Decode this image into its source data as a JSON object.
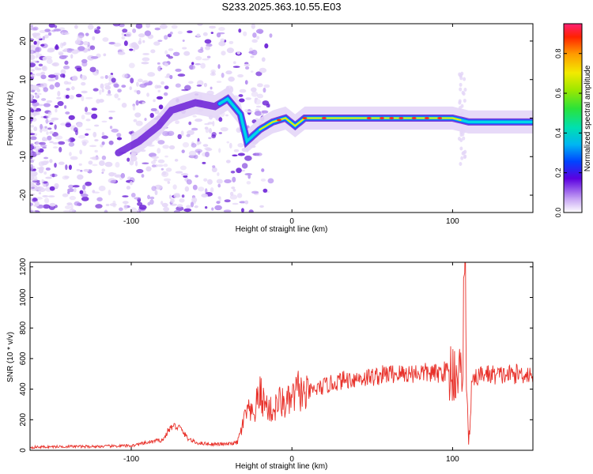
{
  "title": "S233.2025.363.10.55.E03",
  "colors": {
    "line": "#e8312a",
    "spectrogram_faint": "#e4d6f7",
    "spectrogram_mid": "#b58ef0",
    "spectrogram_strong": "#6a1fd6",
    "ridge": "#00d8e6",
    "ridge_core": "#ff2a1a"
  },
  "chart_data": [
    {
      "id": "spectrogram",
      "type": "heatmap",
      "xlabel": "Height of straight line (km)",
      "ylabel": "Frequency (Hz)",
      "xlim": [
        -163,
        150
      ],
      "ylim": [
        -24.5,
        24.5
      ],
      "xticks": [
        -100,
        0,
        100
      ],
      "xtick_labels": [
        "-100",
        "0",
        "100"
      ],
      "yticks": [
        20,
        10,
        0,
        -10,
        -20
      ],
      "ytick_labels": [
        "20",
        "10",
        "0",
        "-10",
        "-20"
      ],
      "grid": false,
      "description_ridge": [
        {
          "x": -108,
          "y": -9
        },
        {
          "x": -95,
          "y": -6
        },
        {
          "x": -83,
          "y": -2
        },
        {
          "x": -75,
          "y": 2
        },
        {
          "x": -60,
          "y": 4
        },
        {
          "x": -48,
          "y": 3
        },
        {
          "x": -40,
          "y": 5
        },
        {
          "x": -32,
          "y": 1
        },
        {
          "x": -28,
          "y": -6
        },
        {
          "x": -20,
          "y": -3
        },
        {
          "x": -12,
          "y": -1
        },
        {
          "x": -4,
          "y": 0
        },
        {
          "x": 2,
          "y": -2
        },
        {
          "x": 8,
          "y": 0
        },
        {
          "x": 40,
          "y": 0
        },
        {
          "x": 100,
          "y": 0
        },
        {
          "x": 110,
          "y": -1
        },
        {
          "x": 150,
          "y": -1
        }
      ],
      "colorbar": {
        "label": "Normalized spectral amplitude",
        "range": [
          0,
          0.95
        ],
        "ticks": [
          0.0,
          0.2,
          0.4,
          0.6,
          0.8
        ],
        "tick_labels": [
          "0.0",
          "0.2",
          "0.4",
          "0.6",
          "0.8"
        ]
      }
    },
    {
      "id": "snr",
      "type": "line",
      "xlabel": "Height of straight line (km)",
      "ylabel": "SNR (10 * v/v)",
      "xlim": [
        -163,
        150
      ],
      "ylim": [
        0,
        1230
      ],
      "xticks": [
        -100,
        0,
        100
      ],
      "xtick_labels": [
        "-100",
        "0",
        "100"
      ],
      "yticks": [
        0,
        200,
        400,
        600,
        800,
        1000,
        1200
      ],
      "ytick_labels": [
        "0",
        "200",
        "400",
        "600",
        "800",
        "1000",
        "1200"
      ],
      "grid": false,
      "series": [
        {
          "name": "SNR",
          "x": [
            -163,
            -140,
            -120,
            -100,
            -90,
            -80,
            -77,
            -74,
            -70,
            -65,
            -60,
            -50,
            -40,
            -34,
            -31,
            -28,
            -24,
            -20,
            -18,
            -15,
            -12,
            -8,
            -4,
            0,
            4,
            8,
            12,
            16,
            20,
            26,
            32,
            40,
            50,
            60,
            70,
            80,
            90,
            96,
            100,
            103,
            105,
            107,
            108,
            109,
            110,
            112,
            115,
            120,
            130,
            140,
            150
          ],
          "values": [
            20,
            25,
            25,
            30,
            50,
            70,
            130,
            160,
            150,
            80,
            50,
            40,
            40,
            50,
            150,
            260,
            220,
            380,
            320,
            280,
            250,
            320,
            300,
            330,
            400,
            350,
            390,
            400,
            420,
            440,
            460,
            470,
            480,
            500,
            500,
            510,
            500,
            520,
            510,
            540,
            450,
            900,
            1230,
            300,
            30,
            420,
            480,
            500,
            490,
            500,
            500
          ]
        }
      ]
    }
  ]
}
